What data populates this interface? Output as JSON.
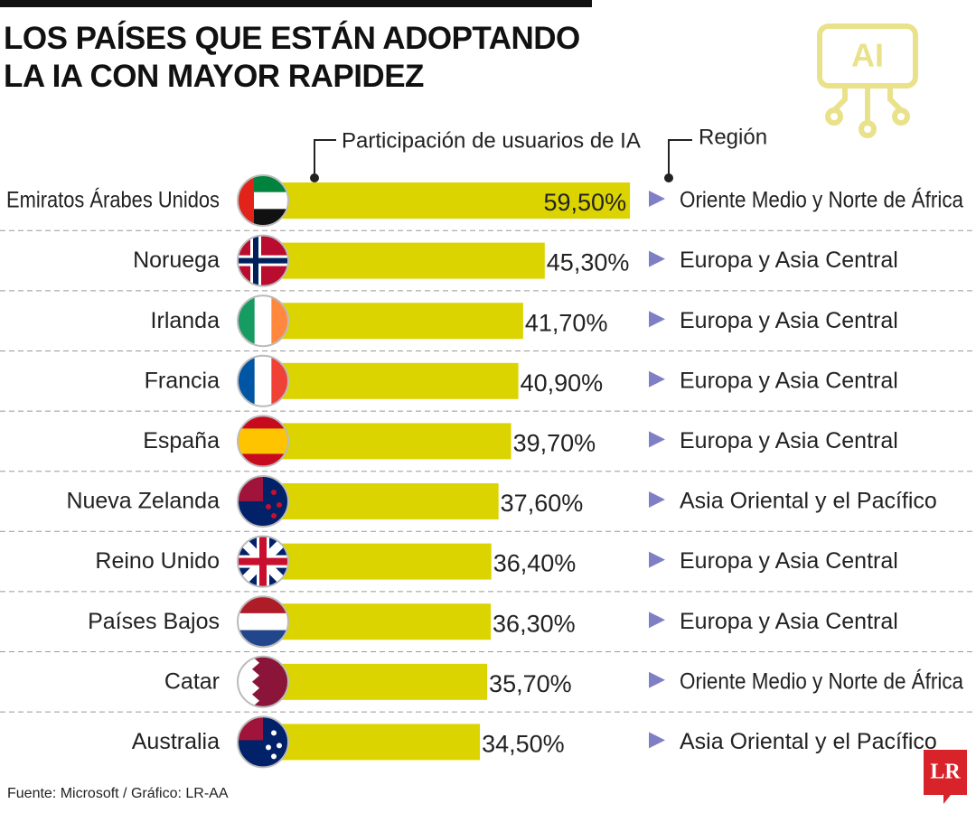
{
  "chart_data": {
    "type": "bar",
    "title": "LOS PAÍSES QUE ESTÁN ADOPTANDO LA IA CON MAYOR RAPIDEZ",
    "value_header": "Participación de usuarios de IA",
    "region_header": "Región",
    "categories": [
      "Emiratos Árabes Unidos",
      "Noruega",
      "Irlanda",
      "Francia",
      "España",
      "Nueva Zelanda",
      "Reino Unido",
      "Países Bajos",
      "Catar",
      "Australia"
    ],
    "values": [
      59.5,
      45.3,
      41.7,
      40.9,
      39.7,
      37.6,
      36.4,
      36.3,
      35.7,
      34.5
    ],
    "value_labels": [
      "59,50%",
      "45,30%",
      "41,70%",
      "40,90%",
      "39,70%",
      "37,60%",
      "36,40%",
      "36,30%",
      "35,70%",
      "34,50%"
    ],
    "regions": [
      "Oriente Medio y Norte de África",
      "Europa y Asia Central",
      "Europa y Asia Central",
      "Europa y Asia Central",
      "Europa y Asia Central",
      "Asia Oriental y el Pacífico",
      "Europa y Asia Central",
      "Europa y Asia Central",
      "Oriente Medio y Norte de África",
      "Asia Oriental y el Pacífico"
    ],
    "color": "#dcd400",
    "source": "Fuente: Microsoft / Gráfico: LR-AA",
    "icon_label": "AI",
    "logo": "LR"
  }
}
